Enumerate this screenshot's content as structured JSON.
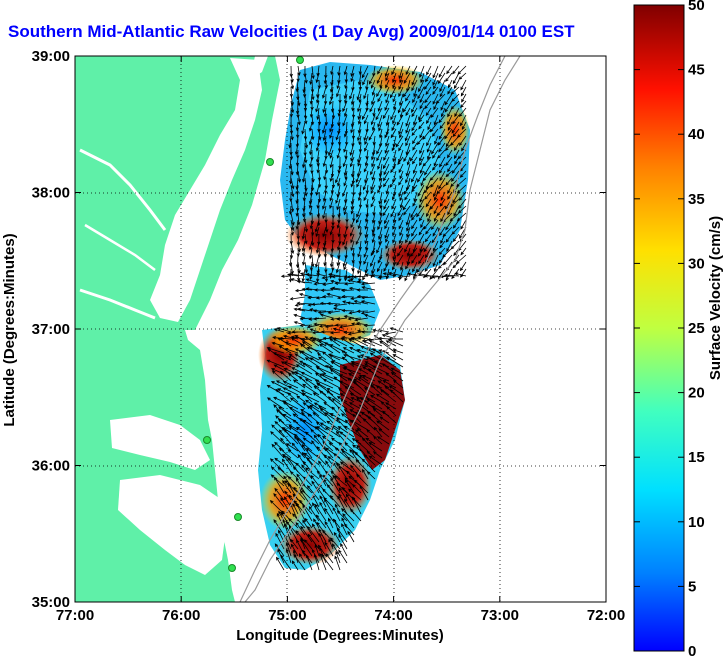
{
  "title": "Southern Mid-Atlantic Raw Velocities (1 Day Avg) 2009/01/14 0100 EST",
  "map": {
    "xlabel": "Longitude (Degrees:Minutes)",
    "ylabel": "Latitude (Degrees:Minutes)",
    "xticks": [
      "77:00",
      "76:00",
      "75:00",
      "74:00",
      "73:00",
      "72:00"
    ],
    "yticks": [
      "39:00",
      "38:00",
      "37:00",
      "36:00",
      "35:00"
    ],
    "xlim": [
      -77,
      -72
    ],
    "ylim": [
      35,
      39
    ],
    "grid": "dotted",
    "land_color": "#5ff0a8",
    "water_color": "#ffffff"
  },
  "colorbar": {
    "label": "Surface Velocity (cm/s)",
    "ticks": [
      "50",
      "45",
      "40",
      "35",
      "30",
      "25",
      "20",
      "15",
      "10",
      "5",
      "0"
    ],
    "range": [
      0,
      50
    ],
    "colormap": "jet"
  },
  "stations": [
    "station-marker",
    "station-marker",
    "station-marker",
    "station-marker",
    "station-marker"
  ]
}
